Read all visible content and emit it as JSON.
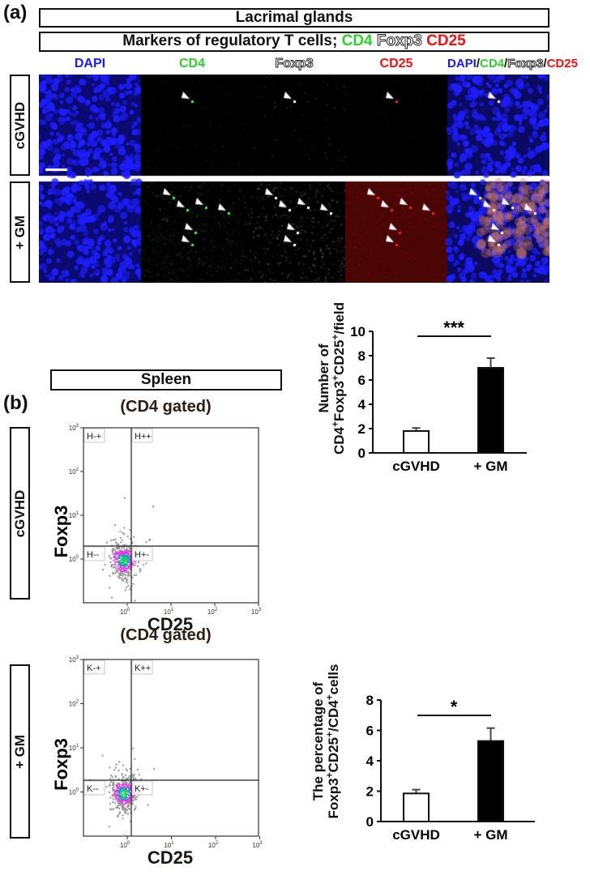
{
  "panel_a": {
    "label": "(a)",
    "title": "Lacrimal glands",
    "subtitle_prefix": "Markers of regulatory T cells; ",
    "subtitle_markers": [
      "CD4",
      "Foxp3",
      "CD25"
    ],
    "channels": [
      "DAPI",
      "CD4",
      "Foxp3",
      "CD25"
    ],
    "merge_label": [
      "DAPI",
      "/",
      "CD4",
      "/",
      "Foxp3",
      "/",
      "CD25"
    ],
    "rows": [
      "cGVHD",
      "+ GM"
    ],
    "colors": {
      "DAPI": "#1a1aff",
      "CD4": "#33cc33",
      "Foxp3": "#ffffff",
      "CD25": "#ee1111"
    }
  },
  "panel_b": {
    "label": "(b)",
    "title": "Spleen",
    "gate_label": "(CD4 gated)",
    "rows": [
      "cGVHD",
      "+ GM"
    ]
  },
  "chart_data": [
    {
      "type": "bar",
      "ylabel_line1": "Number of",
      "ylabel_line2": "CD4+Foxp3+CD25+/field",
      "categories": [
        "cGVHD",
        "+ GM"
      ],
      "values": [
        1.8,
        7.0
      ],
      "errors": [
        0.25,
        0.8
      ],
      "bar_colors": [
        "#ffffff",
        "#000000"
      ],
      "ylim": [
        0,
        10
      ],
      "yticks": [
        "0",
        "2",
        "4",
        "6",
        "8",
        "10"
      ],
      "significance": "***"
    },
    {
      "type": "bar",
      "ylabel_line1": "The percentage of",
      "ylabel_line2": "Foxp3+CD25+/CD4+cells",
      "categories": [
        "cGVHD",
        "+ GM"
      ],
      "values": [
        1.85,
        5.3
      ],
      "errors": [
        0.25,
        0.85
      ],
      "bar_colors": [
        "#ffffff",
        "#000000"
      ],
      "ylim": [
        0,
        8
      ],
      "yticks": [
        "0",
        "2",
        "4",
        "6",
        "8"
      ],
      "significance": "*"
    },
    {
      "type": "scatter",
      "row": "cGVHD",
      "xlabel": "CD25",
      "ylabel": "Foxp3",
      "xscale": "log",
      "yscale": "log",
      "xticks": [
        "10^0",
        "10^1",
        "10^2",
        "10^3"
      ],
      "yticks": [
        "10^0",
        "10^1",
        "10^2",
        "10^3"
      ],
      "quadrants": [
        "H-+",
        "H++",
        "H--",
        "H+-"
      ]
    },
    {
      "type": "scatter",
      "row": "+ GM",
      "xlabel": "CD25",
      "ylabel": "Foxp3",
      "xscale": "log",
      "yscale": "log",
      "xticks": [
        "10^0",
        "10^1",
        "10^2",
        "10^3"
      ],
      "yticks": [
        "10^0",
        "10^1",
        "10^2",
        "10^3"
      ],
      "quadrants": [
        "K-+",
        "K++",
        "K--",
        "K+-"
      ]
    }
  ]
}
